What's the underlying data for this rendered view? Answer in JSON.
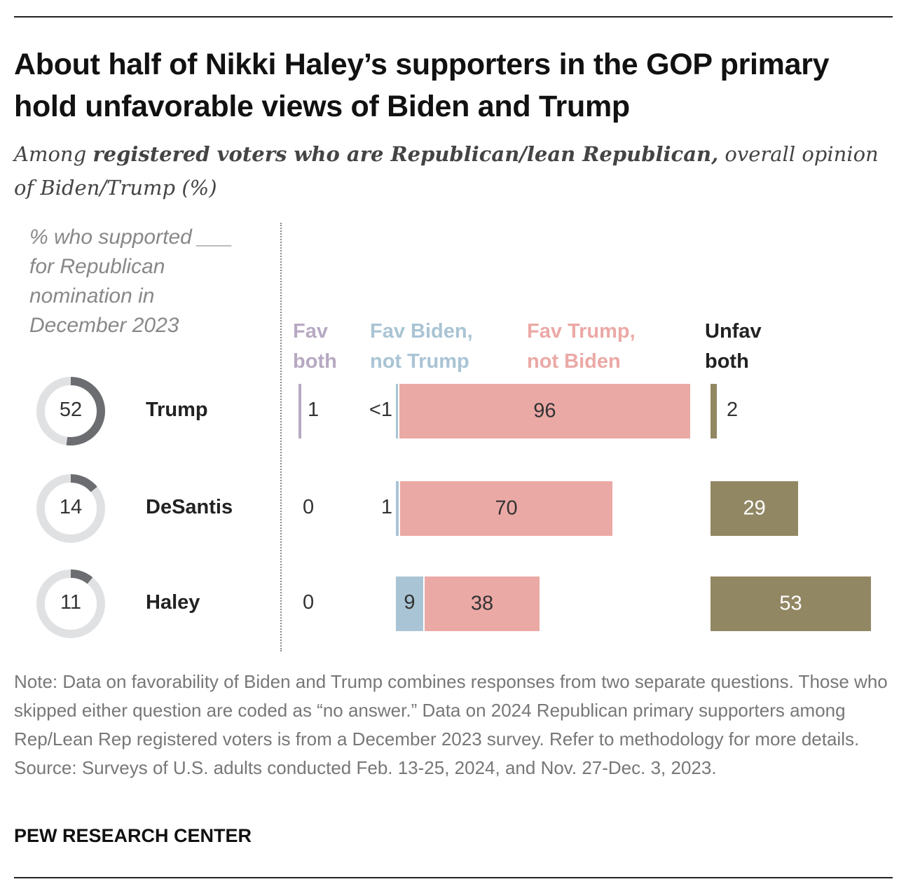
{
  "title": "About half of Nikki Haley’s supporters in the GOP primary hold unfavorable views of Biden and Trump",
  "subtitle_pre": "Among ",
  "subtitle_bold": "registered voters who are Republican/lean Republican,",
  "subtitle_post": " overall opinion of Biden/Trump (%)",
  "note": "Note: Data on favorability of Biden and Trump combines responses from two separate questions. Those who skipped either question are coded as “no answer.” Data on 2024 Republican primary supporters among Rep/Lean Rep registered voters is from a December 2023 survey. Refer to methodology for more details.",
  "source": "Source: Surveys of U.S. adults conducted Feb. 13-25, 2024, and Nov. 27-Dec. 3, 2023.",
  "brand": "PEW RESEARCH CENTER",
  "colors": {
    "fav_both": "#b7a9c2",
    "fav_biden": "#a9c4d4",
    "fav_trump": "#eba9a6",
    "unfav_both": "#928763",
    "donut_fill": "#6b6d70",
    "donut_bg": "#e0e1e3"
  },
  "chart_data": {
    "type": "bar",
    "stacked": true,
    "left_header": "% who supported ___ for Republican nomination in December 2023",
    "categories": [
      "Trump",
      "DeSantis",
      "Haley"
    ],
    "support_share": [
      52,
      14,
      11
    ],
    "series": [
      {
        "name": "Fav both",
        "key": "fav_both",
        "values": [
          1,
          0,
          0
        ],
        "labels": [
          "1",
          "0",
          "0"
        ]
      },
      {
        "name": "Fav Biden, not Trump",
        "key": "fav_biden",
        "values": [
          0.4,
          1,
          9
        ],
        "labels": [
          "<1",
          "1",
          "9"
        ]
      },
      {
        "name": "Fav Trump, not Biden",
        "key": "fav_trump",
        "values": [
          96,
          70,
          38
        ],
        "labels": [
          "96",
          "70",
          "38"
        ]
      },
      {
        "name": "Unfav both",
        "key": "unfav_both",
        "values": [
          2,
          29,
          53
        ],
        "labels": [
          "2",
          "29",
          "53"
        ]
      }
    ],
    "header_lines": {
      "fav_both": [
        "Fav",
        "both"
      ],
      "fav_biden": [
        "Fav Biden,",
        "not Trump"
      ],
      "fav_trump": [
        "Fav Trump,",
        "not Biden"
      ],
      "unfav_both": [
        "Unfav",
        "both"
      ]
    }
  }
}
